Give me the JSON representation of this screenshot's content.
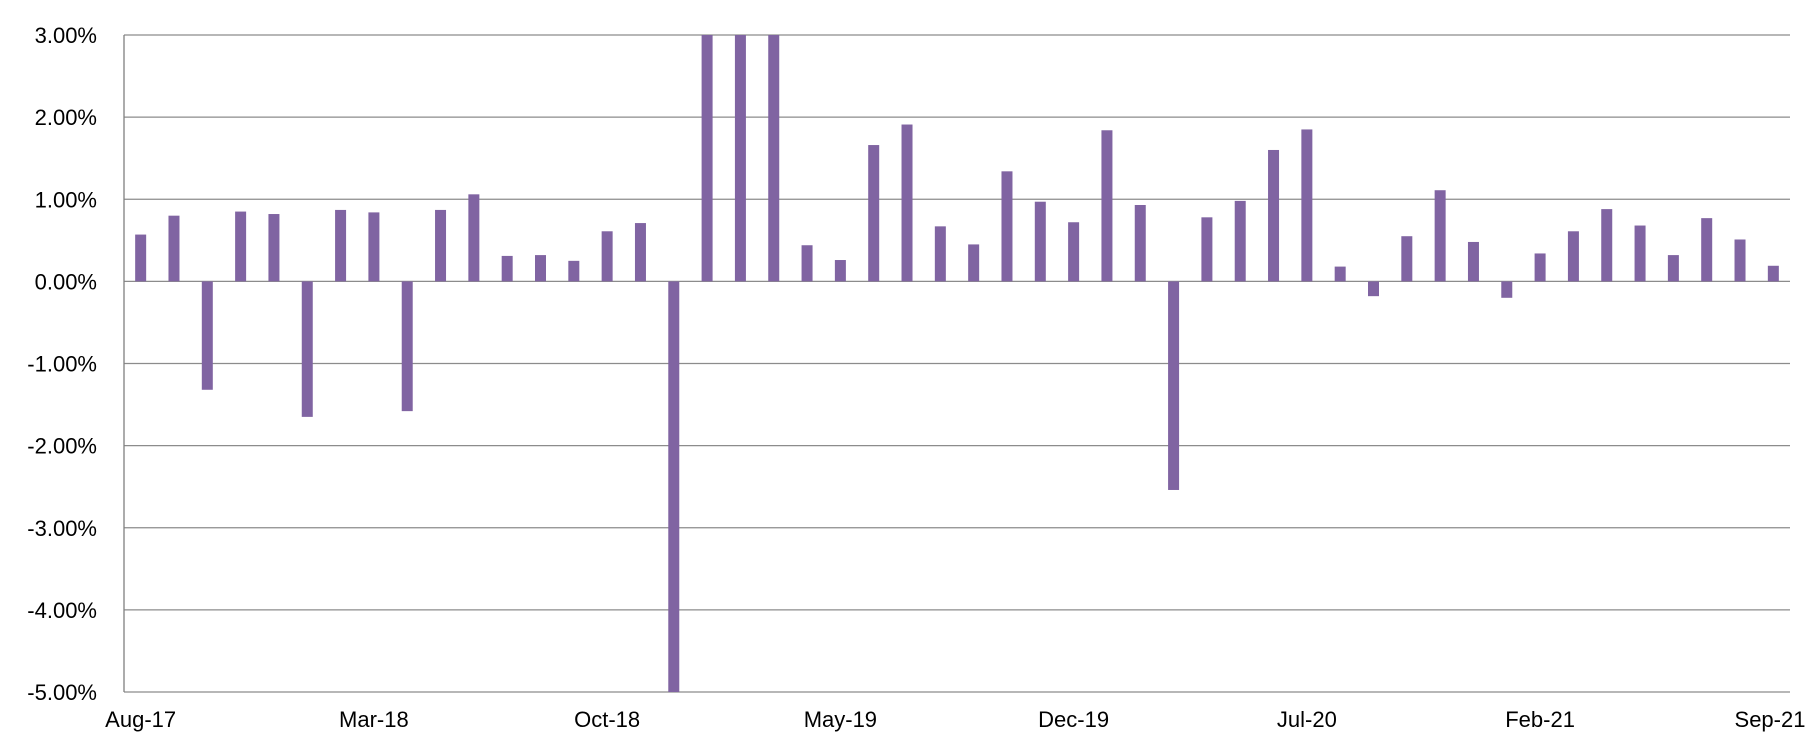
{
  "chart_data": {
    "type": "bar",
    "title": "",
    "xlabel": "",
    "ylabel": "",
    "ylim": [
      -5,
      3
    ],
    "y_ticks": [
      3,
      2,
      1,
      0,
      -1,
      -2,
      -3,
      -4,
      -5
    ],
    "y_tick_labels": [
      "3.00%",
      "2.00%",
      "1.00%",
      "0.00%",
      "-1.00%",
      "-2.00%",
      "-3.00%",
      "-4.00%",
      "-5.00%"
    ],
    "x_tick_labels": [
      "Aug-17",
      "Mar-18",
      "Oct-18",
      "May-19",
      "Dec-19",
      "Jul-20",
      "Feb-21",
      "Sep-21"
    ],
    "grid": true,
    "legend": "none",
    "bar_color": "#8064a2",
    "categories": [
      "Aug-17",
      "Sep-17",
      "Oct-17",
      "Nov-17",
      "Dec-17",
      "Jan-18",
      "Feb-18",
      "Mar-18",
      "Apr-18",
      "May-18",
      "Jun-18",
      "Jul-18",
      "Aug-18",
      "Sep-18",
      "Oct-18",
      "Nov-18",
      "Dec-18",
      "Jan-19",
      "Feb-19",
      "Mar-19",
      "Apr-19",
      "May-19",
      "Jun-19",
      "Jul-19",
      "Aug-19",
      "Sep-19",
      "Oct-19",
      "Nov-19",
      "Dec-19",
      "Jan-20",
      "Feb-20",
      "Mar-20",
      "Apr-20",
      "May-20",
      "Jun-20",
      "Jul-20",
      "Aug-20",
      "Sep-20",
      "Oct-20",
      "Nov-20",
      "Dec-20",
      "Jan-21",
      "Feb-21",
      "Mar-21",
      "Apr-21",
      "May-21",
      "Jun-21",
      "Jul-21",
      "Aug-21",
      "Sep-21"
    ],
    "values": [
      0.57,
      0.8,
      -1.32,
      0.85,
      0.82,
      -1.65,
      0.87,
      0.84,
      -1.58,
      0.87,
      1.06,
      0.31,
      0.32,
      0.25,
      0.61,
      0.71,
      -5.0,
      3.0,
      3.0,
      3.0,
      0.44,
      0.26,
      1.66,
      1.91,
      0.67,
      0.45,
      1.34,
      0.97,
      0.72,
      1.84,
      0.93,
      -2.54,
      0.78,
      0.98,
      1.6,
      1.85,
      0.18,
      -0.18,
      0.55,
      1.11,
      0.48,
      -0.2,
      0.34,
      0.61,
      0.88,
      0.68,
      0.32,
      0.77,
      0.51,
      0.19
    ]
  }
}
